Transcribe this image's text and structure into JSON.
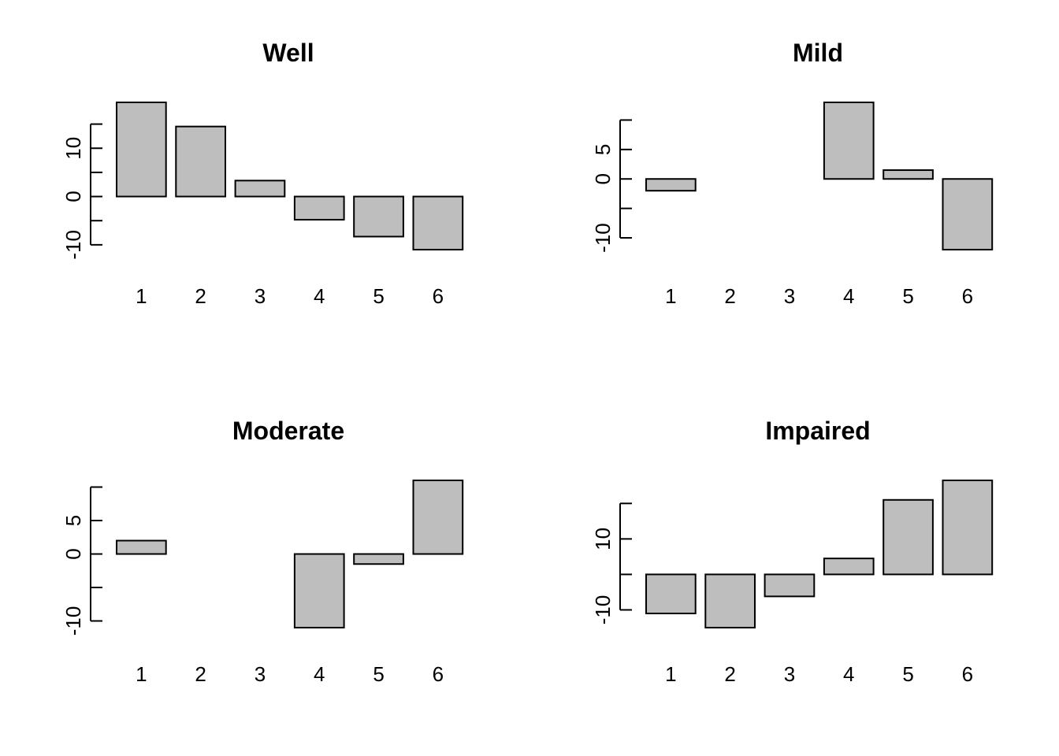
{
  "chart_data": [
    {
      "type": "bar",
      "title": "Well",
      "categories": [
        "1",
        "2",
        "3",
        "4",
        "5",
        "6"
      ],
      "values": [
        19.5,
        14.5,
        3.3,
        -4.8,
        -8.3,
        -11
      ],
      "ylim": [
        -11,
        19.5
      ],
      "yticks": [
        -15,
        -10,
        -5,
        0,
        5,
        10,
        15
      ],
      "ytick_labels": [
        "",
        "-10",
        "",
        "0",
        "",
        "10",
        ""
      ],
      "xlabel": "",
      "ylabel": "",
      "bar_color": "#bebebe",
      "grid": false,
      "legend": "none"
    },
    {
      "type": "bar",
      "title": "Mild",
      "categories": [
        "1",
        "2",
        "3",
        "4",
        "5",
        "6"
      ],
      "values": [
        -2,
        0,
        0,
        13,
        1.5,
        -12
      ],
      "ylim": [
        -12,
        13
      ],
      "yticks": [
        -10,
        -5,
        0,
        5,
        10
      ],
      "ytick_labels": [
        "-10",
        "",
        "0",
        "5",
        ""
      ],
      "xlabel": "",
      "ylabel": "",
      "bar_color": "#bebebe",
      "grid": false,
      "legend": "none"
    },
    {
      "type": "bar",
      "title": "Moderate",
      "categories": [
        "1",
        "2",
        "3",
        "4",
        "5",
        "6"
      ],
      "values": [
        2,
        0,
        0,
        -11,
        -1.5,
        11
      ],
      "ylim": [
        -11,
        11
      ],
      "yticks": [
        -10,
        -5,
        0,
        5,
        10
      ],
      "ytick_labels": [
        "-10",
        "",
        "0",
        "5",
        ""
      ],
      "xlabel": "",
      "ylabel": "",
      "bar_color": "#bebebe",
      "grid": false,
      "legend": "none"
    },
    {
      "type": "bar",
      "title": "Impaired",
      "categories": [
        "1",
        "2",
        "3",
        "4",
        "5",
        "6"
      ],
      "values": [
        -11,
        -15,
        -6.2,
        4.5,
        21,
        26.5
      ],
      "ylim": [
        -15,
        26.5
      ],
      "yticks": [
        -10,
        0,
        10,
        20
      ],
      "ytick_labels": [
        "-10",
        "",
        "10",
        ""
      ],
      "xlabel": "",
      "ylabel": "",
      "bar_color": "#bebebe",
      "grid": false,
      "legend": "none"
    }
  ]
}
